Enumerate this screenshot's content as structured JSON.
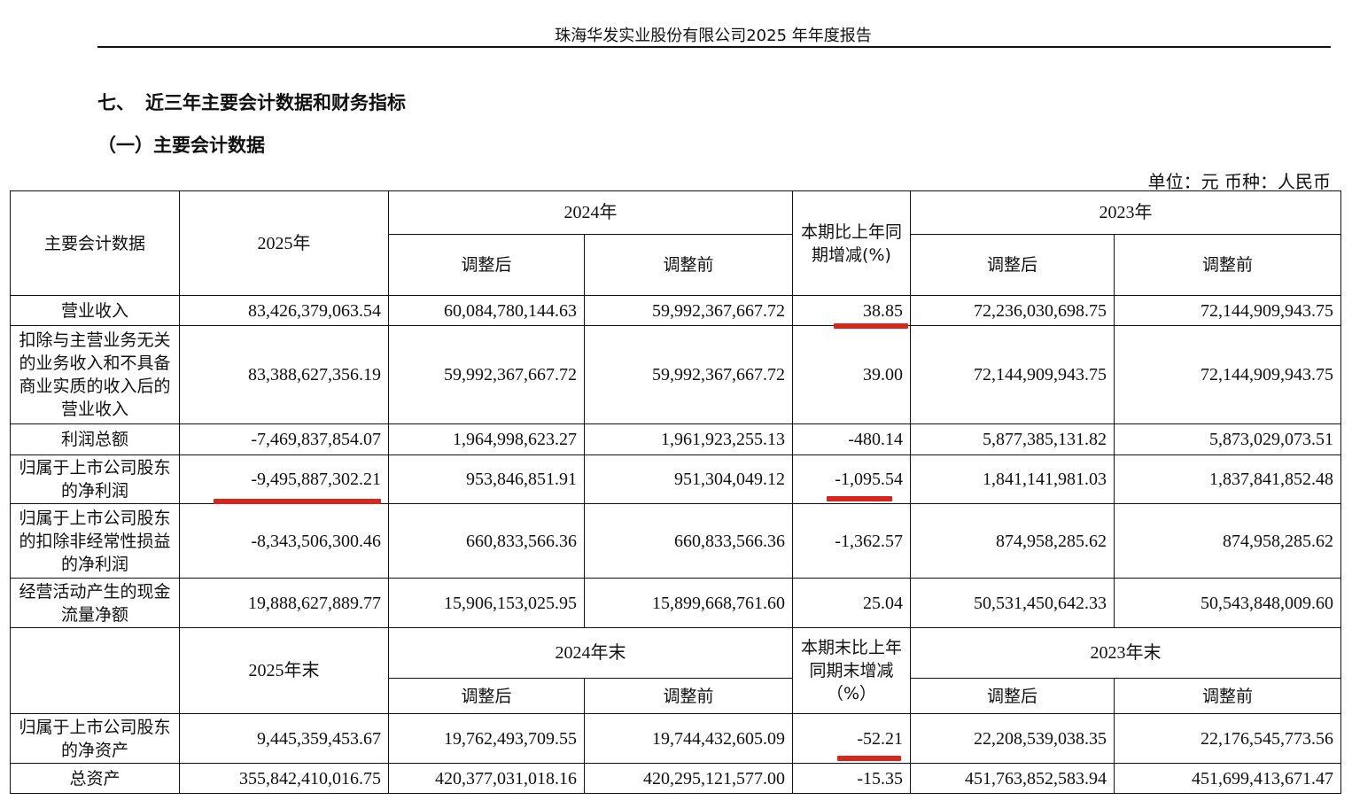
{
  "header": {
    "title": "珠海华发实业股份有限公司2025 年年度报告"
  },
  "section": {
    "number": "七、",
    "title": "近三年主要会计数据和财务指标"
  },
  "subsection": {
    "title": "（一）主要会计数据"
  },
  "unit_line": "单位：元  币种：人民币",
  "table1": {
    "headers": {
      "item": "主要会计数据",
      "y2025": "2025年",
      "y2024": "2024年",
      "change": "本期比上年同期增减(%)",
      "y2023": "2023年",
      "adjusted": "调整后",
      "before": "调整前"
    },
    "rows": [
      {
        "label": "营业收入",
        "v2025": "83,426,379,063.54",
        "v2024_adj": "60,084,780,144.63",
        "v2024_pre": "59,992,367,667.72",
        "change": "38.85",
        "v2023_adj": "72,236,030,698.75",
        "v2023_pre": "72,144,909,943.75"
      },
      {
        "label": "扣除与主营业务无关的业务收入和不具备商业实质的收入后的营业收入",
        "v2025": "83,388,627,356.19",
        "v2024_adj": "59,992,367,667.72",
        "v2024_pre": "59,992,367,667.72",
        "change": "39.00",
        "v2023_adj": "72,144,909,943.75",
        "v2023_pre": "72,144,909,943.75"
      },
      {
        "label": "利润总额",
        "v2025": "-7,469,837,854.07",
        "v2024_adj": "1,964,998,623.27",
        "v2024_pre": "1,961,923,255.13",
        "change": "-480.14",
        "v2023_adj": "5,877,385,131.82",
        "v2023_pre": "5,873,029,073.51"
      },
      {
        "label": "归属于上市公司股东的净利润",
        "v2025": "-9,495,887,302.21",
        "v2024_adj": "953,846,851.91",
        "v2024_pre": "951,304,049.12",
        "change": "-1,095.54",
        "v2023_adj": "1,841,141,981.03",
        "v2023_pre": "1,837,841,852.48"
      },
      {
        "label": "归属于上市公司股东的扣除非经常性损益的净利润",
        "v2025": "-8,343,506,300.46",
        "v2024_adj": "660,833,566.36",
        "v2024_pre": "660,833,566.36",
        "change": "-1,362.57",
        "v2023_adj": "874,958,285.62",
        "v2023_pre": "874,958,285.62"
      },
      {
        "label": "经营活动产生的现金流量净额",
        "v2025": "19,888,627,889.77",
        "v2024_adj": "15,906,153,025.95",
        "v2024_pre": "15,899,668,761.60",
        "change": "25.04",
        "v2023_adj": "50,531,450,642.33",
        "v2023_pre": "50,543,848,009.60"
      }
    ]
  },
  "table2": {
    "headers": {
      "item": "",
      "y2025": "2025年末",
      "y2024": "2024年末",
      "change": "本期末比上年同期末增减（%）",
      "y2023": "2023年末",
      "adjusted": "调整后",
      "before": "调整前"
    },
    "rows": [
      {
        "label": "归属于上市公司股东的净资产",
        "v2025": "9,445,359,453.67",
        "v2024_adj": "19,762,493,709.55",
        "v2024_pre": "19,744,432,605.09",
        "change": "-52.21",
        "v2023_adj": "22,208,539,038.35",
        "v2023_pre": "22,176,545,773.56"
      },
      {
        "label": "总资产",
        "v2025": "355,842,410,016.75",
        "v2024_adj": "420,377,031,018.16",
        "v2024_pre": "420,295,121,577.00",
        "change": "-15.35",
        "v2023_adj": "451,763,852,583.94",
        "v2023_pre": "451,699,413,671.47"
      }
    ]
  },
  "highlight_color": "#d9261c"
}
